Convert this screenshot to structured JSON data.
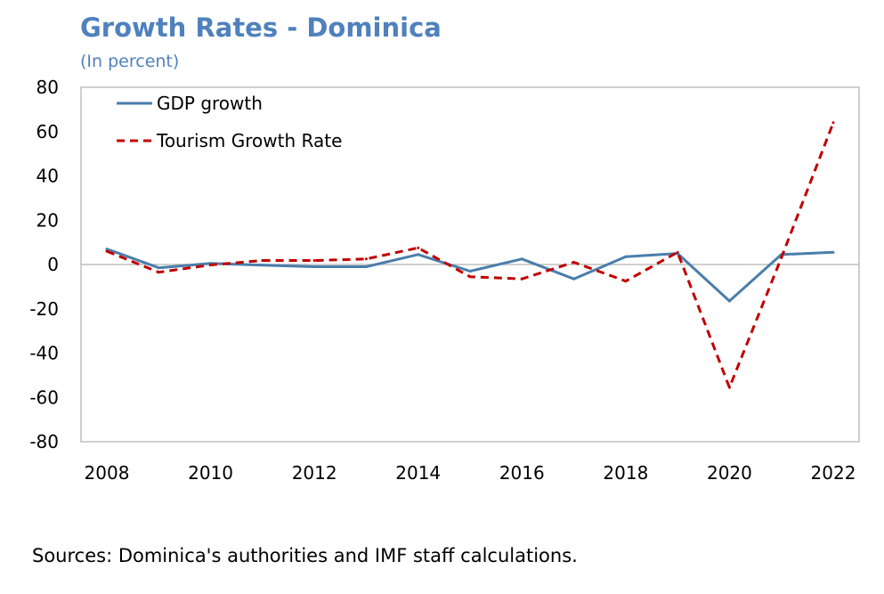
{
  "title": "Growth Rates - Dominica",
  "subtitle": "(In percent)",
  "source": "Sources: Dominica's authorities and IMF staff calculations.",
  "colors": {
    "gdp": "#4a7eab",
    "tourism": "#c00000",
    "title": "#4f81bd"
  },
  "chart_data": {
    "type": "line",
    "title": "Growth Rates - Dominica",
    "subtitle": "(In percent)",
    "xlabel": "",
    "ylabel": "",
    "x": [
      2008,
      2009,
      2010,
      2011,
      2012,
      2013,
      2014,
      2015,
      2016,
      2017,
      2018,
      2019,
      2020,
      2021,
      2022
    ],
    "xticks": [
      2008,
      2010,
      2012,
      2014,
      2016,
      2018,
      2020,
      2022
    ],
    "yticks": [
      80,
      60,
      40,
      20,
      0,
      -20,
      -40,
      -60,
      -80
    ],
    "ylim": [
      -80,
      80
    ],
    "xlim": [
      2008,
      2022
    ],
    "grid": false,
    "legend_position": "top-left",
    "series": [
      {
        "name": "GDP growth",
        "style": "solid",
        "color": "#4a7eab",
        "values": [
          7.0,
          -1.5,
          0.5,
          -0.3,
          -1.0,
          -1.0,
          4.5,
          -3.0,
          2.5,
          -6.5,
          3.5,
          5.0,
          -16.5,
          4.5,
          5.5
        ]
      },
      {
        "name": "Tourism Growth Rate",
        "style": "dashed",
        "color": "#c00000",
        "values": [
          6.0,
          -3.5,
          -0.2,
          1.8,
          1.8,
          2.5,
          7.5,
          -5.5,
          -6.5,
          1.0,
          -7.5,
          5.5,
          -55.5,
          3.0,
          64.0
        ]
      }
    ]
  }
}
